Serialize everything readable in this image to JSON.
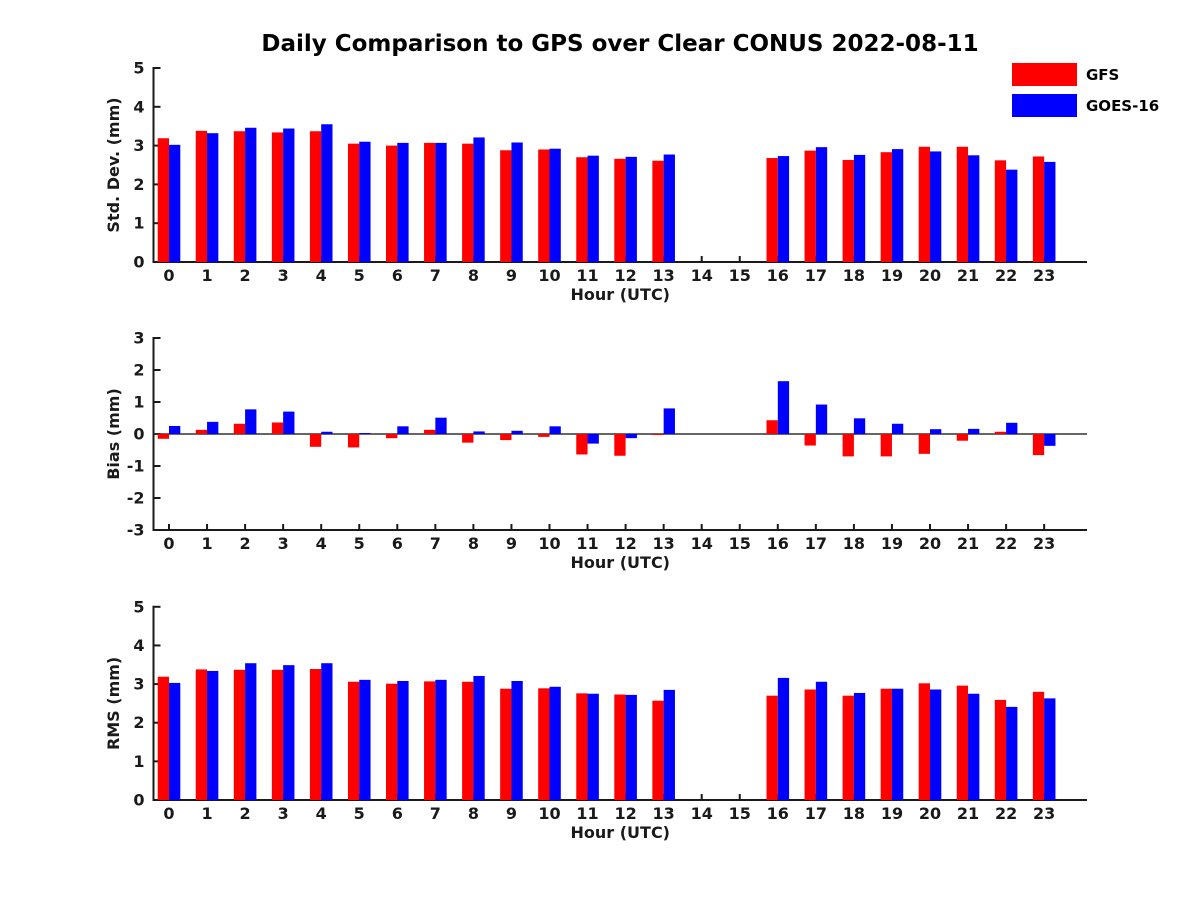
{
  "title": "Daily Comparison to GPS over Clear CONUS 2022-08-11",
  "legend": {
    "items": [
      {
        "label": "GFS",
        "color": "#ff0000"
      },
      {
        "label": "GOES-16",
        "color": "#0000ff"
      }
    ]
  },
  "colors": {
    "gfs": "#ff0000",
    "goes16": "#0000ff",
    "axis": "#1a1a1a"
  },
  "chart_data": [
    {
      "type": "bar",
      "title": "",
      "xlabel": "Hour (UTC)",
      "ylabel": "Std. Dev. (mm)",
      "ylim": [
        0,
        5
      ],
      "yticks": [
        0,
        1,
        2,
        3,
        4,
        5
      ],
      "categories": [
        "0",
        "1",
        "2",
        "3",
        "4",
        "5",
        "6",
        "7",
        "8",
        "9",
        "10",
        "11",
        "12",
        "13",
        "14",
        "15",
        "16",
        "17",
        "18",
        "19",
        "20",
        "21",
        "22",
        "23"
      ],
      "series": [
        {
          "name": "GFS",
          "color": "#ff0000",
          "values": [
            3.19,
            3.38,
            3.37,
            3.34,
            3.37,
            3.05,
            3.0,
            3.07,
            3.05,
            2.88,
            2.9,
            2.7,
            2.66,
            2.61,
            null,
            null,
            2.68,
            2.87,
            2.63,
            2.83,
            2.97,
            2.97,
            2.62,
            2.72
          ]
        },
        {
          "name": "GOES-16",
          "color": "#0000ff",
          "values": [
            3.02,
            3.32,
            3.46,
            3.44,
            3.55,
            3.1,
            3.07,
            3.07,
            3.21,
            3.08,
            2.92,
            2.74,
            2.71,
            2.77,
            null,
            null,
            2.73,
            2.96,
            2.76,
            2.91,
            2.85,
            2.75,
            2.38,
            2.58
          ]
        }
      ]
    },
    {
      "type": "bar",
      "title": "",
      "xlabel": "Hour (UTC)",
      "ylabel": "Bias (mm)",
      "ylim": [
        -3,
        3
      ],
      "yticks": [
        -3,
        -2,
        -1,
        0,
        1,
        2,
        3
      ],
      "categories": [
        "0",
        "1",
        "2",
        "3",
        "4",
        "5",
        "6",
        "7",
        "8",
        "9",
        "10",
        "11",
        "12",
        "13",
        "14",
        "15",
        "16",
        "17",
        "18",
        "19",
        "20",
        "21",
        "22",
        "23"
      ],
      "series": [
        {
          "name": "GFS",
          "color": "#ff0000",
          "values": [
            -0.15,
            0.13,
            0.32,
            0.36,
            -0.4,
            -0.42,
            -0.13,
            0.13,
            -0.27,
            -0.19,
            -0.09,
            -0.64,
            -0.68,
            -0.03,
            null,
            null,
            0.43,
            -0.36,
            -0.7,
            -0.7,
            -0.62,
            -0.21,
            0.07,
            -0.66
          ]
        },
        {
          "name": "GOES-16",
          "color": "#0000ff",
          "values": [
            0.25,
            0.38,
            0.77,
            0.7,
            0.07,
            0.03,
            0.24,
            0.51,
            0.08,
            0.1,
            0.24,
            -0.3,
            -0.13,
            0.8,
            null,
            null,
            1.65,
            0.92,
            0.49,
            0.32,
            0.15,
            0.16,
            0.35,
            -0.37
          ]
        }
      ]
    },
    {
      "type": "bar",
      "title": "",
      "xlabel": "Hour (UTC)",
      "ylabel": "RMS (mm)",
      "ylim": [
        0,
        5
      ],
      "yticks": [
        0,
        1,
        2,
        3,
        4,
        5
      ],
      "categories": [
        "0",
        "1",
        "2",
        "3",
        "4",
        "5",
        "6",
        "7",
        "8",
        "9",
        "10",
        "11",
        "12",
        "13",
        "14",
        "15",
        "16",
        "17",
        "18",
        "19",
        "20",
        "21",
        "22",
        "23"
      ],
      "series": [
        {
          "name": "GFS",
          "color": "#ff0000",
          "values": [
            3.19,
            3.38,
            3.37,
            3.37,
            3.39,
            3.06,
            3.01,
            3.07,
            3.06,
            2.88,
            2.89,
            2.76,
            2.73,
            2.57,
            null,
            null,
            2.7,
            2.86,
            2.7,
            2.88,
            3.02,
            2.96,
            2.59,
            2.8
          ]
        },
        {
          "name": "GOES-16",
          "color": "#0000ff",
          "values": [
            3.03,
            3.34,
            3.54,
            3.49,
            3.54,
            3.11,
            3.08,
            3.11,
            3.21,
            3.08,
            2.93,
            2.75,
            2.72,
            2.85,
            null,
            null,
            3.16,
            3.06,
            2.77,
            2.88,
            2.86,
            2.75,
            2.41,
            2.63
          ]
        }
      ]
    }
  ]
}
